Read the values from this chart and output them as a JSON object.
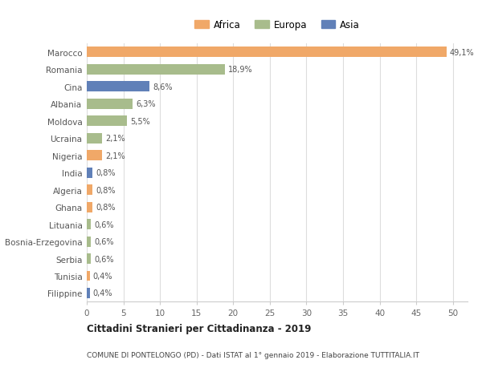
{
  "countries": [
    "Marocco",
    "Romania",
    "Cina",
    "Albania",
    "Moldova",
    "Ucraina",
    "Nigeria",
    "India",
    "Algeria",
    "Ghana",
    "Lituania",
    "Bosnia-Erzegovina",
    "Serbia",
    "Tunisia",
    "Filippine"
  ],
  "values": [
    49.1,
    18.9,
    8.6,
    6.3,
    5.5,
    2.1,
    2.1,
    0.8,
    0.8,
    0.8,
    0.6,
    0.6,
    0.6,
    0.4,
    0.4
  ],
  "labels": [
    "49,1%",
    "18,9%",
    "8,6%",
    "6,3%",
    "5,5%",
    "2,1%",
    "2,1%",
    "0,8%",
    "0,8%",
    "0,8%",
    "0,6%",
    "0,6%",
    "0,6%",
    "0,4%",
    "0,4%"
  ],
  "continents": [
    "Africa",
    "Europa",
    "Asia",
    "Europa",
    "Europa",
    "Europa",
    "Africa",
    "Asia",
    "Africa",
    "Africa",
    "Europa",
    "Europa",
    "Europa",
    "Africa",
    "Asia"
  ],
  "colors": {
    "Africa": "#F0A868",
    "Europa": "#A8BC8C",
    "Asia": "#6080B8"
  },
  "legend_order": [
    "Africa",
    "Europa",
    "Asia"
  ],
  "title": "Cittadini Stranieri per Cittadinanza - 2019",
  "subtitle": "COMUNE DI PONTELONGO (PD) - Dati ISTAT al 1° gennaio 2019 - Elaborazione TUTTITALIA.IT",
  "xlim": [
    0,
    52
  ],
  "xticks": [
    0,
    5,
    10,
    15,
    20,
    25,
    30,
    35,
    40,
    45,
    50
  ],
  "background_color": "#ffffff",
  "grid_color": "#dddddd"
}
